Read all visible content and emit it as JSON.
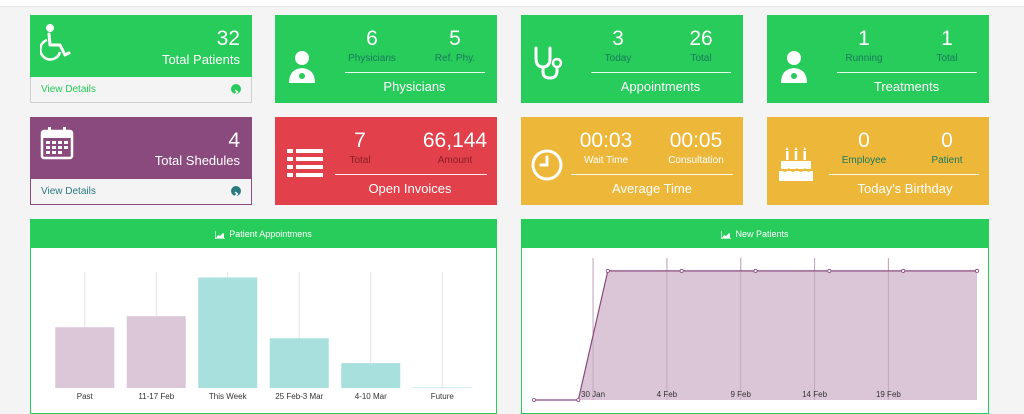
{
  "colors": {
    "green": "#27cc5a",
    "purple": "#8a4a7e",
    "red": "#e2404a",
    "yellow": "#edb73a",
    "bar_purple": "#dcc7d8",
    "bar_teal": "#a8e0de",
    "area_fill": "#dbc6d7",
    "line": "#8a4a7e"
  },
  "cards": {
    "total_patients": {
      "icon": "wheelchair-icon",
      "value": "32",
      "label": "Total Patients",
      "footer": "View Details"
    },
    "physicians": {
      "icon": "doctor-icon",
      "v1": "6",
      "l1": "Physicians",
      "v2": "5",
      "l2": "Ref. Phy.",
      "title": "Physicians"
    },
    "appointments": {
      "icon": "stethoscope-icon",
      "v1": "3",
      "l1": "Today",
      "v2": "26",
      "l2": "Total",
      "title": "Appointments"
    },
    "treatments": {
      "icon": "doctor-icon",
      "v1": "1",
      "l1": "Running",
      "v2": "1",
      "l2": "Total",
      "title": "Treatments"
    },
    "total_schedules": {
      "icon": "calendar-icon",
      "value": "4",
      "label": "Total Shedules",
      "footer": "View Details"
    },
    "invoices": {
      "icon": "list-icon",
      "v1": "7",
      "l1": "Total",
      "v2": "66,144",
      "l2": "Amount",
      "title": "Open Invoices"
    },
    "average_time": {
      "icon": "clock-icon",
      "v1": "00:03",
      "l1": "Wait Time",
      "v2": "00:05",
      "l2": "Consultation",
      "title": "Average Time"
    },
    "birthday": {
      "icon": "cake-icon",
      "v1": "0",
      "l1": "Employee",
      "v2": "0",
      "l2": "Patient",
      "title": "Today's Birthday"
    }
  },
  "panels": {
    "appointments_title": "Patient Appointmens",
    "new_patients_title": "New Patients"
  },
  "chart_data": [
    {
      "type": "bar",
      "title": "Patient Appointmens",
      "categories": [
        "Past",
        "11-17 Feb",
        "This Week",
        "25 Feb-3 Mar",
        "4-10 Mar",
        "Future"
      ],
      "values": [
        11,
        13,
        20,
        9,
        4.5,
        0
      ],
      "colors": [
        "#dcc7d8",
        "#dcc7d8",
        "#a8e0de",
        "#a8e0de",
        "#a8e0de",
        "#a8e0de"
      ],
      "ylim": [
        0,
        21
      ],
      "grid": true
    },
    {
      "type": "area",
      "title": "New Patients",
      "x_ticks": [
        "30 Jan",
        "4 Feb",
        "9 Feb",
        "14 Feb",
        "19 Feb"
      ],
      "x": [
        "26 Jan",
        "29 Jan",
        "31 Jan",
        "5 Feb",
        "10 Feb",
        "15 Feb",
        "20 Feb",
        "25 Feb"
      ],
      "values": [
        0,
        0,
        1,
        1,
        1,
        1,
        1,
        1
      ],
      "ylim": [
        0,
        1.1
      ],
      "grid": true
    }
  ]
}
